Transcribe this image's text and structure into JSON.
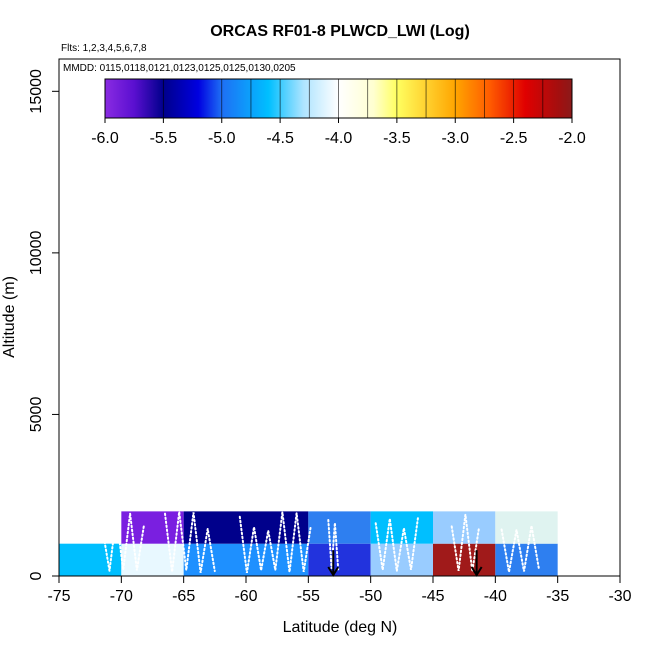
{
  "chart_data": {
    "type": "heatmap",
    "title": "ORCAS RF01-8 PLWCD_LWI (Log)",
    "flights_label": "Flts: 1,2,3,4,5,6,7,8",
    "dates_label": "MMDD: 0115,0118,0121,0123,0125,0125,0130,0205",
    "xlabel": "Latitude (deg N)",
    "ylabel": "Altitude (m)",
    "xlim": [
      -75,
      -30
    ],
    "ylim": [
      0,
      16000
    ],
    "xticks": [
      -75,
      -70,
      -65,
      -60,
      -55,
      -50,
      -45,
      -40,
      -35,
      -30
    ],
    "yticks": [
      0,
      5000,
      10000,
      15000
    ],
    "colorbar": {
      "range": [
        -6.0,
        -2.0
      ],
      "ticks": [
        "-6.0",
        "-5.5",
        "-5.0",
        "-4.5",
        "-4.0",
        "-3.5",
        "-3.0",
        "-2.5",
        "-2.0"
      ],
      "stops": [
        {
          "v": -6.0,
          "color": "#8a2be2"
        },
        {
          "v": -5.75,
          "color": "#5a0fd0"
        },
        {
          "v": -5.5,
          "color": "#00008b"
        },
        {
          "v": -5.2,
          "color": "#0000e0"
        },
        {
          "v": -5.0,
          "color": "#1e6ff5"
        },
        {
          "v": -4.6,
          "color": "#00bfff"
        },
        {
          "v": -4.3,
          "color": "#aee4ff"
        },
        {
          "v": -4.0,
          "color": "#ffffff"
        },
        {
          "v": -3.7,
          "color": "#ffffd0"
        },
        {
          "v": -3.5,
          "color": "#ffff60"
        },
        {
          "v": -3.0,
          "color": "#ffa500"
        },
        {
          "v": -2.7,
          "color": "#ff5a00"
        },
        {
          "v": -2.4,
          "color": "#e00000"
        },
        {
          "v": -2.1,
          "color": "#a01010"
        },
        {
          "v": -2.0,
          "color": "#8b1a1a"
        }
      ]
    },
    "cells": [
      {
        "x0": -75,
        "x1": -70,
        "y0": 0,
        "y1": 1000,
        "color": "#00bfff"
      },
      {
        "x0": -70,
        "x1": -65,
        "y0": 0,
        "y1": 1000,
        "color": "#e8f8ff"
      },
      {
        "x0": -65,
        "x1": -60,
        "y0": 0,
        "y1": 1000,
        "color": "#1e90ff"
      },
      {
        "x0": -60,
        "x1": -55,
        "y0": 0,
        "y1": 1000,
        "color": "#1e90ff"
      },
      {
        "x0": -55,
        "x1": -50,
        "y0": 0,
        "y1": 1000,
        "color": "#2233dd"
      },
      {
        "x0": -50,
        "x1": -45,
        "y0": 0,
        "y1": 1000,
        "color": "#99ccff"
      },
      {
        "x0": -45,
        "x1": -40,
        "y0": 0,
        "y1": 1000,
        "color": "#a01a1a"
      },
      {
        "x0": -40,
        "x1": -35,
        "y0": 0,
        "y1": 1000,
        "color": "#2e7ff0"
      },
      {
        "x0": -70,
        "x1": -65,
        "y0": 1000,
        "y1": 2000,
        "color": "#7a1fe0"
      },
      {
        "x0": -65,
        "x1": -60,
        "y0": 1000,
        "y1": 2000,
        "color": "#00008b"
      },
      {
        "x0": -60,
        "x1": -55,
        "y0": 1000,
        "y1": 2000,
        "color": "#00008b"
      },
      {
        "x0": -55,
        "x1": -50,
        "y0": 1000,
        "y1": 2000,
        "color": "#2e7ff0"
      },
      {
        "x0": -50,
        "x1": -45,
        "y0": 1000,
        "y1": 2000,
        "color": "#00bfff"
      },
      {
        "x0": -45,
        "x1": -40,
        "y0": 1000,
        "y1": 2000,
        "color": "#99ccff"
      },
      {
        "x0": -40,
        "x1": -35,
        "y0": 1000,
        "y1": 2000,
        "color": "#dff3f0"
      }
    ],
    "arrows": [
      {
        "x": -53,
        "y_top": 800,
        "y_bottom": 0
      },
      {
        "x": -41.5,
        "y_top": 800,
        "y_bottom": 0
      }
    ],
    "flight_track_note": "white dotted flight tracks below 2000 m",
    "flight_segments": [
      {
        "x0": -71.5,
        "x1": -68.2
      },
      {
        "x0": -66.5,
        "x1": -62.5
      },
      {
        "x0": -60.5,
        "x1": -54.8
      },
      {
        "x0": -53.4,
        "x1": -52.6
      },
      {
        "x0": -49.6,
        "x1": -46.2
      },
      {
        "x0": -43.5,
        "x1": -41.3
      },
      {
        "x0": -39.5,
        "x1": -36.5
      }
    ]
  }
}
